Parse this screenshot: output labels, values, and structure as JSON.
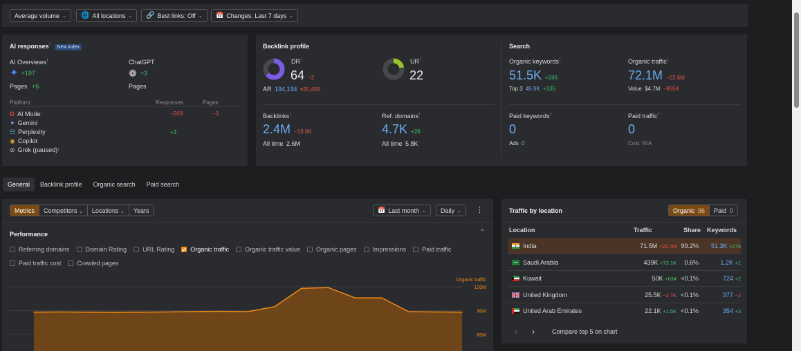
{
  "filters": {
    "volume": "Average volume",
    "locations": "All locations",
    "best_links": "Best links: Off",
    "changes": "Changes: Last 7 days"
  },
  "ai": {
    "title": "AI responses",
    "badge": "New index",
    "overviews_label": "AI Overviews",
    "overviews_value": "+197",
    "overviews_pages_label": "Pages",
    "overviews_pages_value": "+6",
    "chatgpt_label": "ChatGPT",
    "chatgpt_value": "+3",
    "chatgpt_pages_label": "Pages",
    "table_headers": [
      "Platform",
      "Responses",
      "Pages"
    ],
    "platforms": [
      {
        "name": "AI Mode",
        "responses": "−269",
        "pages": "−3"
      },
      {
        "name": "Gemini",
        "responses": "",
        "pages": ""
      },
      {
        "name": "Perplexity",
        "responses": "+3",
        "pages": ""
      },
      {
        "name": "Copilot",
        "responses": "",
        "pages": ""
      },
      {
        "name": "Grok (paused)",
        "responses": "",
        "pages": ""
      }
    ]
  },
  "backlink": {
    "title": "Backlink profile",
    "dr_label": "DR",
    "dr_value": "64",
    "dr_change": "−2",
    "dr_fill": 0.64,
    "ur_label": "UR",
    "ur_value": "22",
    "ur_fill": 0.22,
    "ar_label": "AR",
    "ar_value": "194,194",
    "ar_change": "▾20,458",
    "backlinks_label": "Backlinks",
    "backlinks_value": "2.4M",
    "backlinks_change": "−13.6K",
    "backlinks_alltime_label": "All time",
    "backlinks_alltime": "2.6M",
    "refdomains_label": "Ref. domains",
    "refdomains_value": "4.7K",
    "refdomains_change": "+26",
    "refdomains_alltime_label": "All time",
    "refdomains_alltime": "5.8K"
  },
  "search": {
    "title": "Search",
    "ok_label": "Organic keywords",
    "ok_value": "51.5K",
    "ok_change": "+246",
    "top3_label": "Top 3",
    "top3_value": "45.9K",
    "top3_change": "+335",
    "ot_label": "Organic traffic",
    "ot_value": "72.1M",
    "ot_change": "−22.6M",
    "value_label": "Value",
    "value_value": "$4.7M",
    "value_change": "−855K",
    "pk_label": "Paid keywords",
    "pk_value": "0",
    "ads_label": "Ads",
    "ads_value": "0",
    "pt_label": "Paid traffic",
    "pt_value": "0",
    "cost_label": "Cost",
    "cost_value": "N/A"
  },
  "tabs": [
    "General",
    "Backlink profile",
    "Organic search",
    "Paid search"
  ],
  "subtabs": [
    "Metrics",
    "Competitors",
    "Locations",
    "Years"
  ],
  "period": "Last month",
  "granularity": "Daily",
  "performance": {
    "title": "Performance",
    "checks": [
      {
        "label": "Referring domains",
        "on": false
      },
      {
        "label": "Domain Rating",
        "on": false
      },
      {
        "label": "URL Rating",
        "on": false
      },
      {
        "label": "Organic traffic",
        "on": true
      },
      {
        "label": "Organic traffic value",
        "on": false
      },
      {
        "label": "Organic pages",
        "on": false
      },
      {
        "label": "Impressions",
        "on": false
      },
      {
        "label": "Paid traffic",
        "on": false
      },
      {
        "label": "Paid traffic cost",
        "on": false
      },
      {
        "label": "Crawled pages",
        "on": false
      }
    ]
  },
  "chart_data": {
    "type": "area",
    "series": [
      {
        "name": "Organic traffic",
        "values": [
          88,
          88.3,
          88,
          87.8,
          88,
          88.3,
          88.8,
          89,
          88.7,
          95,
          118,
          119,
          106,
          106,
          88.7,
          88.3,
          88
        ]
      }
    ],
    "yticks": [
      "120M",
      "90M",
      "60M"
    ],
    "ylim": [
      60,
      120
    ],
    "color": "#f08a16"
  },
  "location": {
    "title": "Traffic by location",
    "organic_label": "Organic",
    "organic_count": "96",
    "paid_label": "Paid",
    "paid_count": "0",
    "headers": [
      "Location",
      "Traffic",
      "Share",
      "Keywords"
    ],
    "rows": [
      {
        "flag": "in",
        "name": "India",
        "traffic": "71.5M",
        "tchange": "−22.7M",
        "tchange_color": "red",
        "share": "99.2%",
        "keywords": "51.3K",
        "kchange": "+276",
        "kchange_color": "green"
      },
      {
        "flag": "sa",
        "name": "Saudi Arabia",
        "traffic": "439K",
        "tchange": "+73.1K",
        "tchange_color": "green",
        "share": "0.6%",
        "keywords": "1.2K",
        "kchange": "+1",
        "kchange_color": "green"
      },
      {
        "flag": "kw",
        "name": "Kuwait",
        "traffic": "50K",
        "tchange": "+634",
        "tchange_color": "green",
        "share": "<0.1%",
        "keywords": "724",
        "kchange": "+2",
        "kchange_color": "green"
      },
      {
        "flag": "gb",
        "name": "United Kingdom",
        "traffic": "25.5K",
        "tchange": "−2.7K",
        "tchange_color": "red",
        "share": "<0.1%",
        "keywords": "377",
        "kchange": "−2",
        "kchange_color": "red"
      },
      {
        "flag": "ae",
        "name": "United Arab Emirates",
        "traffic": "22.1K",
        "tchange": "+1.5K",
        "tchange_color": "green",
        "share": "<0.1%",
        "keywords": "354",
        "kchange": "+3",
        "kchange_color": "green"
      }
    ],
    "compare_label": "Compare top 5 on chart"
  }
}
